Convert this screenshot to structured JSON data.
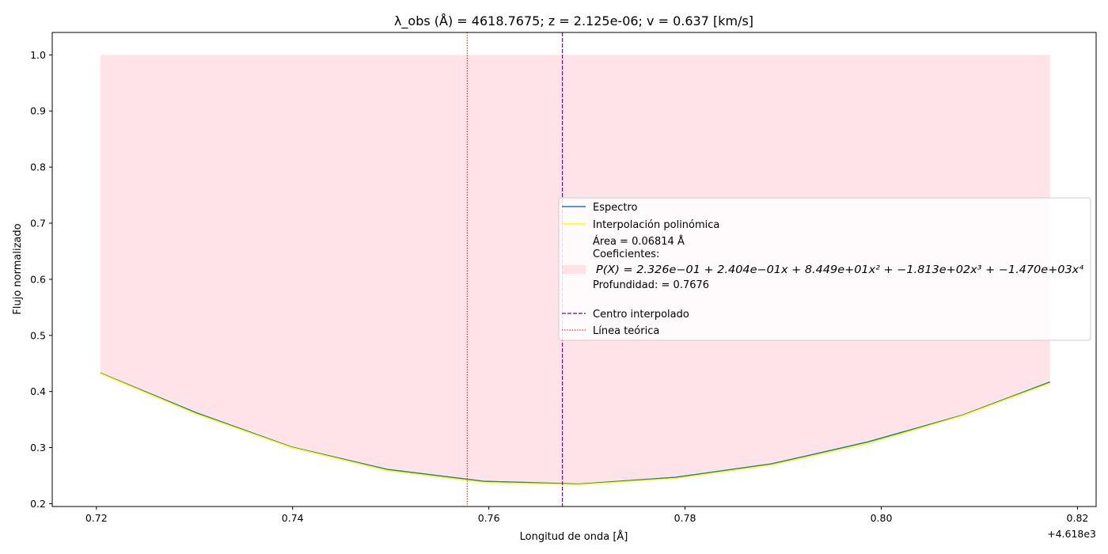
{
  "chart_data": {
    "type": "line",
    "title": "λ_obs (Å) = 4618.7675; z = 2.125e-06; v = 0.637 [km/s]",
    "xlabel": "Longitud de onda [Å]",
    "ylabel": "Flujo normalizado",
    "x_offset_label": "+4.618e3",
    "xlim": [
      0.7155,
      0.8219
    ],
    "ylim": [
      0.195,
      1.04
    ],
    "xticks": [
      0.72,
      0.74,
      0.76,
      0.78,
      0.8,
      0.82
    ],
    "xtick_labels": [
      "0.72",
      "0.74",
      "0.76",
      "0.78",
      "0.80",
      "0.82"
    ],
    "yticks": [
      0.2,
      0.3,
      0.4,
      0.5,
      0.6,
      0.7,
      0.8,
      0.9,
      1.0
    ],
    "ytick_labels": [
      "0.2",
      "0.3",
      "0.4",
      "0.5",
      "0.6",
      "0.7",
      "0.8",
      "0.9",
      "1.0"
    ],
    "grid": false,
    "legend_position": "center-right",
    "series": [
      {
        "name": "Espectro",
        "color": "#1f77b4",
        "x": [
          0.7204,
          0.7302,
          0.7399,
          0.7497,
          0.7595,
          0.7692,
          0.779,
          0.7888,
          0.7986,
          0.8083,
          0.8172
        ],
        "y": [
          0.433,
          0.362,
          0.301,
          0.261,
          0.24,
          0.235,
          0.247,
          0.271,
          0.31,
          0.358,
          0.417
        ]
      },
      {
        "name": "Interpolación polinómica",
        "color": "#ffff00",
        "x": [
          0.7204,
          0.7302,
          0.7399,
          0.7497,
          0.7595,
          0.7692,
          0.779,
          0.7888,
          0.7986,
          0.8083,
          0.8172
        ],
        "y": [
          0.432,
          0.36,
          0.3,
          0.259,
          0.238,
          0.234,
          0.245,
          0.269,
          0.307,
          0.357,
          0.415
        ]
      }
    ],
    "fill_area": {
      "label_lines": [
        "Área = 0.06814 Å",
        "Coeficientes:"
      ],
      "formula": "P(X) = 2.326e−01 + 2.404e−01x + 8.449e+01x² + −1.813e+02x³ + −1.470e+03x⁴",
      "depth_label": "Profundidad: = 0.7676",
      "color": "#ffc0cb",
      "upper": 1.0
    },
    "vlines": [
      {
        "name": "Centro interpolado",
        "x": 0.7675,
        "color": "#800080",
        "style": "dashed"
      },
      {
        "name": "Línea teórica",
        "x": 0.7578,
        "color": "#ff0000",
        "style": "dotted"
      }
    ]
  }
}
